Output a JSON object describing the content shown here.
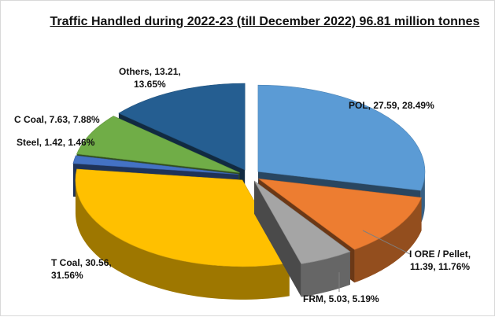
{
  "chart_data": {
    "type": "pie",
    "title": "Traffic Handled during 2022-23 (till December 2022) 96.81 million tonnes",
    "slices": [
      {
        "name": "POL",
        "value": 27.59,
        "percent": 28.49,
        "label_lines": [
          "POL, 27.59, 28.49%"
        ],
        "color": "#5b9bd5"
      },
      {
        "name": "I ORE / Pellet",
        "value": 11.39,
        "percent": 11.76,
        "label_lines": [
          "I ORE / Pellet,",
          "11.39, 11.76%"
        ],
        "color": "#ed7d31"
      },
      {
        "name": "FRM",
        "value": 5.03,
        "percent": 5.19,
        "label_lines": [
          "FRM, 5.03, 5.19%"
        ],
        "color": "#a5a5a5"
      },
      {
        "name": "T Coal",
        "value": 30.56,
        "percent": 31.56,
        "label_lines": [
          "T Coal, 30.56,",
          "31.56%"
        ],
        "color": "#ffc000"
      },
      {
        "name": "Steel",
        "value": 1.42,
        "percent": 1.46,
        "label_lines": [
          "Steel, 1.42, 1.46%"
        ],
        "color": "#4472c4"
      },
      {
        "name": "C Coal",
        "value": 7.63,
        "percent": 7.88,
        "label_lines": [
          "C Coal, 7.63, 7.88%"
        ],
        "color": "#70ad47"
      },
      {
        "name": "Others",
        "value": 13.21,
        "percent": 13.65,
        "label_lines": [
          "Others, 13.21,",
          "13.65%"
        ],
        "color": "#255e91"
      }
    ]
  }
}
